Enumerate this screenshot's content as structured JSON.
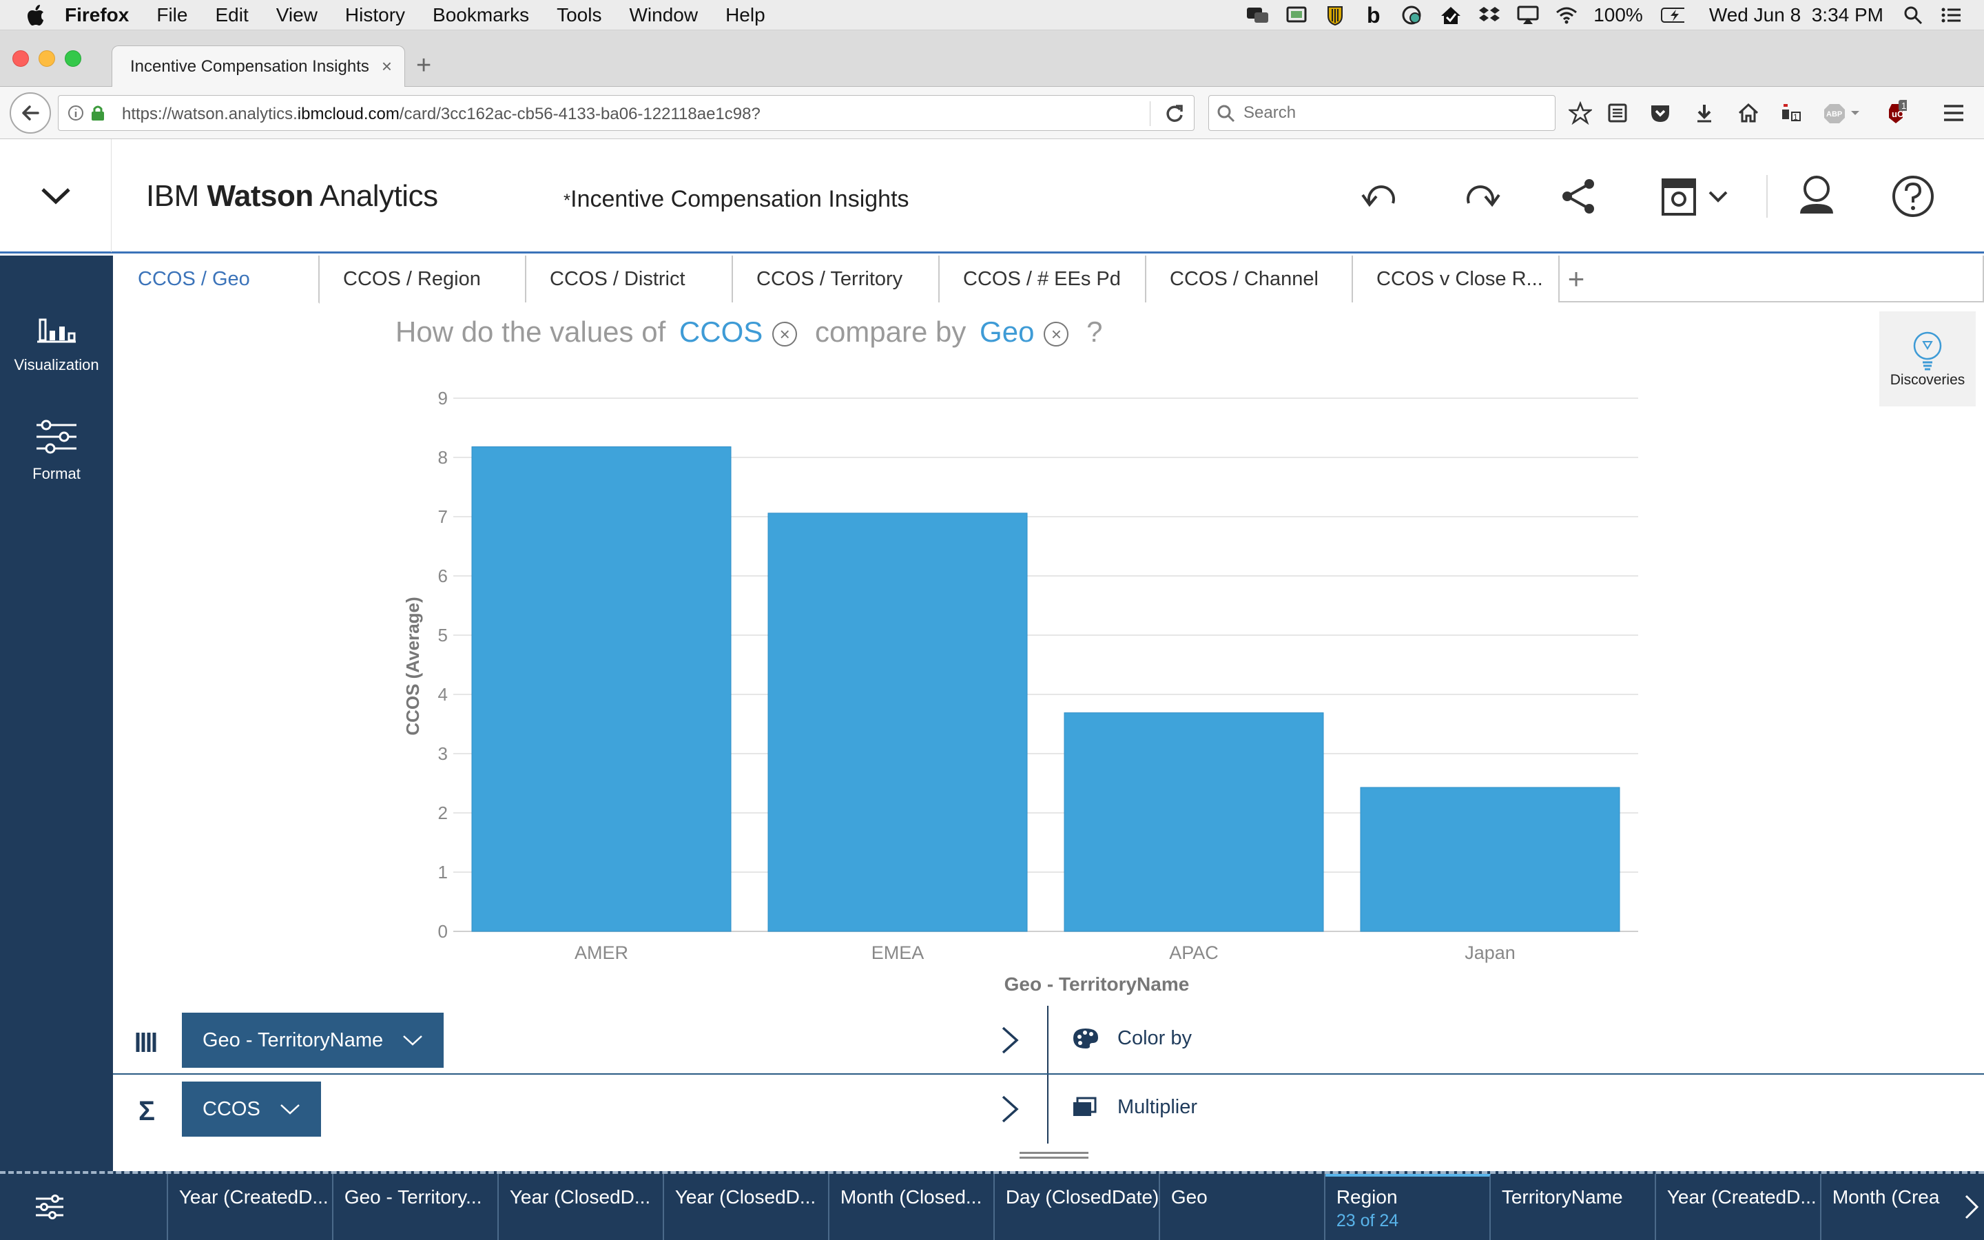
{
  "menubar": {
    "app": "Firefox",
    "items": [
      "File",
      "Edit",
      "View",
      "History",
      "Bookmarks",
      "Tools",
      "Window",
      "Help"
    ],
    "battery": "100%",
    "datetime": "Wed Jun 8  3:34 PM"
  },
  "browser": {
    "tab_title": "Incentive Compensation Insights",
    "url_prefix": "https://watson.analytics.",
    "url_domain": "ibmcloud.com",
    "url_rest": "/card/3cc162ac-cb56-4133-ba06-122118ae1c98?",
    "search_placeholder": "Search",
    "ublock_badge": "1"
  },
  "app": {
    "brand_ibm": "IBM",
    "brand_watson": "Watson",
    "brand_analytics": "Analytics",
    "doc_title": "Incentive Compensation Insights",
    "modified_marker": "*"
  },
  "rail": {
    "visualization": "Visualization",
    "format": "Format"
  },
  "sheet_tabs": [
    "CCOS / Geo",
    "CCOS / Region",
    "CCOS / District",
    "CCOS / Territory",
    "CCOS / # EEs Pd",
    "CCOS / Channel",
    "CCOS v Close R..."
  ],
  "question": {
    "prefix": "How do the values of",
    "measure": "CCOS",
    "middle": "compare by",
    "dimension": "Geo",
    "suffix": "?"
  },
  "discoveries_label": "Discoveries",
  "chart_data": {
    "type": "bar",
    "categories": [
      "AMER",
      "EMEA",
      "APAC",
      "Japan"
    ],
    "values": [
      8.18,
      7.06,
      3.69,
      2.43
    ],
    "xlabel": "Geo - TerritoryName",
    "ylabel": "CCOS (Average)",
    "ylim": [
      0,
      9
    ],
    "yticks": [
      0,
      1,
      2,
      3,
      4,
      5,
      6,
      7,
      8,
      9
    ],
    "grid": true,
    "bar_color": "#3fa3da"
  },
  "shelves": {
    "columns_pill": "Geo - TerritoryName",
    "values_pill": "CCOS",
    "color_by": "Color by",
    "multiplier": "Multiplier",
    "sigma": "Σ"
  },
  "data_columns": [
    {
      "label": "Year (CreatedD..."
    },
    {
      "label": "Geo - Territory..."
    },
    {
      "label": "Year (ClosedD..."
    },
    {
      "label": "Year (ClosedD..."
    },
    {
      "label": "Month (Closed..."
    },
    {
      "label": "Day (ClosedDate)"
    },
    {
      "label": "Geo"
    },
    {
      "label": "Region",
      "sub": "23 of 24",
      "selected": true
    },
    {
      "label": "TerritoryName"
    },
    {
      "label": "Year (CreatedD..."
    },
    {
      "label": "Month (Crea"
    }
  ],
  "colors": {
    "accent": "#3b73b9",
    "rail": "#1f3b5b",
    "pill": "#2b5b84",
    "token": "#3e9bd6"
  }
}
